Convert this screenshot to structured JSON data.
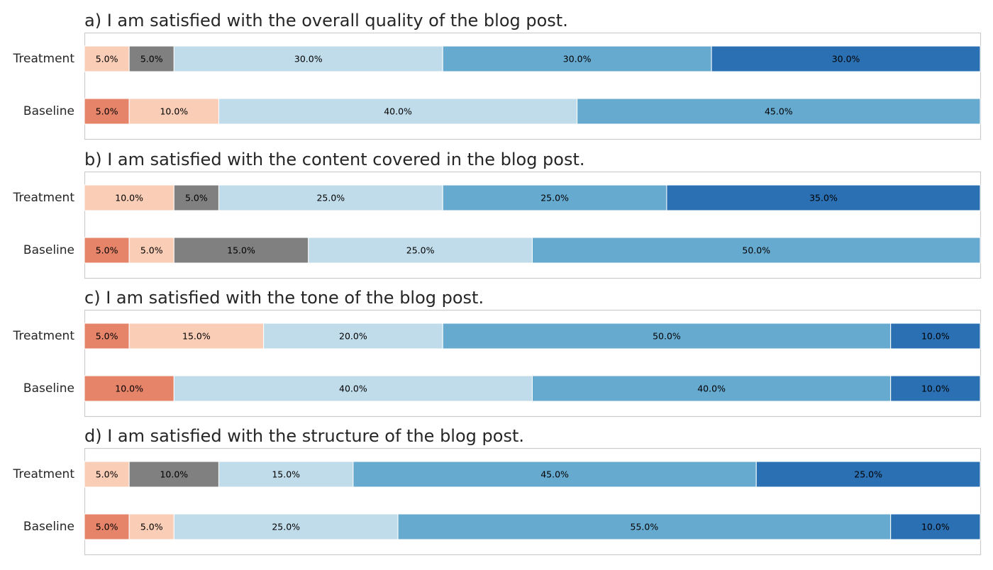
{
  "chart_data": [
    {
      "type": "bar",
      "orientation": "horizontal-stacked",
      "title": "a) I am satisfied with the overall quality of the blog post.",
      "categories": [
        "Treatment",
        "Baseline"
      ],
      "series": [
        {
          "color": "#e6846a",
          "values": [
            0,
            5.0
          ]
        },
        {
          "color": "#f9cdb6",
          "values": [
            5.0,
            10.0
          ]
        },
        {
          "color": "#808080",
          "values": [
            5.0,
            0
          ]
        },
        {
          "color": "#c0dcea",
          "values": [
            30.0,
            40.0
          ]
        },
        {
          "color": "#67aad0",
          "values": [
            30.0,
            45.0
          ]
        },
        {
          "color": "#2a70b3",
          "values": [
            30.0,
            0
          ]
        }
      ],
      "xlim": [
        0,
        100
      ],
      "grid": false
    },
    {
      "type": "bar",
      "orientation": "horizontal-stacked",
      "title": "b) I am satisfied with the content covered in the blog post.",
      "categories": [
        "Treatment",
        "Baseline"
      ],
      "series": [
        {
          "color": "#e6846a",
          "values": [
            0,
            5.0
          ]
        },
        {
          "color": "#f9cdb6",
          "values": [
            10.0,
            5.0
          ]
        },
        {
          "color": "#808080",
          "values": [
            5.0,
            15.0
          ]
        },
        {
          "color": "#c0dcea",
          "values": [
            25.0,
            25.0
          ]
        },
        {
          "color": "#67aad0",
          "values": [
            25.0,
            50.0
          ]
        },
        {
          "color": "#2a70b3",
          "values": [
            35.0,
            0
          ]
        }
      ],
      "xlim": [
        0,
        100
      ],
      "grid": false
    },
    {
      "type": "bar",
      "orientation": "horizontal-stacked",
      "title": "c) I am satisfied with the tone of the blog post.",
      "categories": [
        "Treatment",
        "Baseline"
      ],
      "series": [
        {
          "color": "#e6846a",
          "values": [
            5.0,
            10.0
          ]
        },
        {
          "color": "#f9cdb6",
          "values": [
            15.0,
            0
          ]
        },
        {
          "color": "#808080",
          "values": [
            0,
            0
          ]
        },
        {
          "color": "#c0dcea",
          "values": [
            20.0,
            40.0
          ]
        },
        {
          "color": "#67aad0",
          "values": [
            50.0,
            40.0
          ]
        },
        {
          "color": "#2a70b3",
          "values": [
            10.0,
            10.0
          ]
        }
      ],
      "xlim": [
        0,
        100
      ],
      "grid": false
    },
    {
      "type": "bar",
      "orientation": "horizontal-stacked",
      "title": "d) I am satisfied with the structure of the blog post.",
      "categories": [
        "Treatment",
        "Baseline"
      ],
      "series": [
        {
          "color": "#e6846a",
          "values": [
            0,
            5.0
          ]
        },
        {
          "color": "#f9cdb6",
          "values": [
            5.0,
            5.0
          ]
        },
        {
          "color": "#808080",
          "values": [
            10.0,
            0
          ]
        },
        {
          "color": "#c0dcea",
          "values": [
            15.0,
            25.0
          ]
        },
        {
          "color": "#67aad0",
          "values": [
            45.0,
            55.0
          ]
        },
        {
          "color": "#2a70b3",
          "values": [
            25.0,
            10.0
          ]
        }
      ],
      "xlim": [
        0,
        100
      ],
      "grid": false
    }
  ],
  "style": {
    "frame_color": "#cccccc",
    "title_color": "#262626",
    "label_color": "#262626",
    "data_label_color": "#000000"
  }
}
